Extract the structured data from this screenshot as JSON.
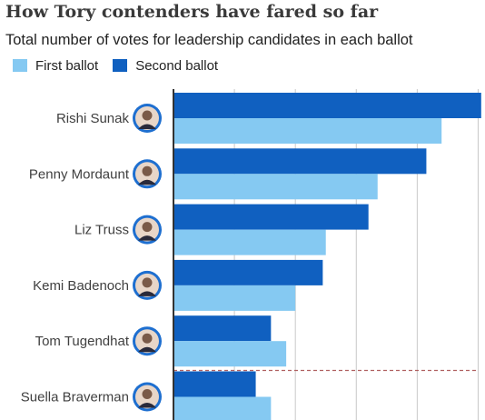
{
  "title": "How Tory contenders have fared so far",
  "subtitle": "Total number of votes for leadership candidates in each ballot",
  "legend": {
    "first_ballot": "First ballot",
    "second_ballot": "Second ballot"
  },
  "colors": {
    "first_ballot": "#85c9f2",
    "second_ballot": "#1060c0",
    "grid": "#c8c8c8",
    "axis": "#333333",
    "threshold_line": "#b06060"
  },
  "chart_data": {
    "type": "bar",
    "orientation": "horizontal",
    "categories": [
      "Rishi Sunak",
      "Penny Mordaunt",
      "Liz Truss",
      "Kemi Badenoch",
      "Tom Tugendhat",
      "Suella Braverman"
    ],
    "series": [
      {
        "name": "Second ballot",
        "values": [
          101,
          83,
          64,
          49,
          32,
          27
        ]
      },
      {
        "name": "First ballot",
        "values": [
          88,
          67,
          50,
          40,
          37,
          32
        ]
      }
    ],
    "xlim": [
      0,
      110
    ],
    "grid": true,
    "threshold_line": "dashed line between Tom Tugendhat and Suella Braverman",
    "legend_position": "top-left",
    "avatar_icons": [
      "rishi-sunak-avatar",
      "penny-mordaunt-avatar",
      "liz-truss-avatar",
      "kemi-badenoch-avatar",
      "tom-tugendhat-avatar",
      "suella-braverman-avatar"
    ]
  }
}
